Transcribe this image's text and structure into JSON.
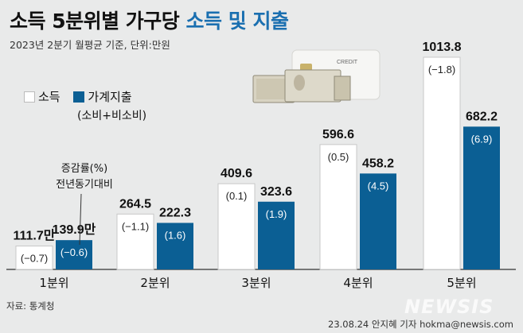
{
  "header": {
    "title_prefix": "소득 5분위별 가구당",
    "title_accent": "소득 및 지출",
    "subtitle": "2023년 2분기 월평균 기준, 단위:만원"
  },
  "legend": {
    "income_label": "소득",
    "spending_label": "가계지출",
    "spending_sub": "(소비+비소비)"
  },
  "note": {
    "line1": "증감률(%)",
    "line2": "전년동기대비"
  },
  "illustration": {
    "card_text": "CREDIT"
  },
  "footer": {
    "source": "자료: 통계청",
    "credit": "23.08.24 안지혜 기자 hokma@newsis.com",
    "watermark": "NEWSIS"
  },
  "colors": {
    "income_bar": "#ffffff",
    "spending_bar": "#0b5f94",
    "accent": "#1a6fb0",
    "background": "#e9eaea"
  },
  "chart_data": {
    "type": "bar",
    "categories": [
      "1분위",
      "2분위",
      "3분위",
      "4분위",
      "5분위"
    ],
    "series": [
      {
        "name": "소득",
        "values": [
          111.7,
          264.5,
          409.6,
          596.6,
          1013.8
        ],
        "value_labels": [
          "111.7만",
          "264.5",
          "409.6",
          "596.6",
          "1013.8"
        ],
        "change_pct": [
          "(−0.7)",
          "(−1.1)",
          "(0.1)",
          "(0.5)",
          "(−1.8)"
        ]
      },
      {
        "name": "가계지출",
        "values": [
          139.9,
          222.3,
          323.6,
          458.2,
          682.2
        ],
        "value_labels": [
          "139.9만",
          "222.3",
          "323.6",
          "458.2",
          "682.2"
        ],
        "change_pct": [
          "(−0.6)",
          "(1.6)",
          "(1.9)",
          "(4.5)",
          "(6.9)"
        ]
      }
    ],
    "ylim": [
      0,
      1013.8
    ]
  }
}
